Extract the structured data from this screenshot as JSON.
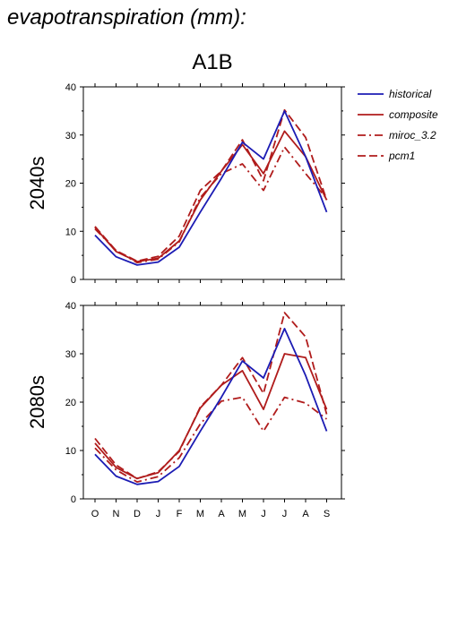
{
  "page_title": "evapotranspiration (mm):",
  "scenario": "A1B",
  "chart_data": {
    "type": "line",
    "categories": [
      "O",
      "N",
      "D",
      "J",
      "F",
      "M",
      "A",
      "M",
      "J",
      "J",
      "A",
      "S"
    ],
    "ylim": [
      0,
      40
    ],
    "yticks": [
      0,
      10,
      20,
      30,
      40
    ],
    "grid": false,
    "legend": "right",
    "legend_entries": [
      {
        "name": "historical",
        "color": "#1c1cb4",
        "style": "solid"
      },
      {
        "name": "composite",
        "color": "#b01c1c",
        "style": "solid"
      },
      {
        "name": "miroc_3.2",
        "color": "#b01c1c",
        "style": "dashdot"
      },
      {
        "name": "pcm1",
        "color": "#b01c1c",
        "style": "dashed"
      }
    ],
    "panels": [
      {
        "label": "2040s",
        "series": [
          {
            "name": "historical",
            "values": [
              9.2,
              4.7,
              3.0,
              3.6,
              6.7,
              14.0,
              21.0,
              28.5,
              25.0,
              35.0,
              25.5,
              14.0
            ]
          },
          {
            "name": "composite",
            "values": [
              10.8,
              5.8,
              3.7,
              4.4,
              8.0,
              16.5,
              22.5,
              28.0,
              22.0,
              30.8,
              25.5,
              16.5
            ]
          },
          {
            "name": "miroc_3.2",
            "values": [
              10.5,
              6.0,
              3.5,
              4.2,
              7.8,
              17.0,
              22.0,
              24.0,
              18.5,
              27.5,
              22.0,
              16.8
            ]
          },
          {
            "name": "pcm1",
            "values": [
              11.0,
              6.0,
              3.8,
              4.8,
              9.0,
              18.5,
              22.5,
              29.0,
              20.5,
              35.2,
              29.5,
              16.5
            ]
          }
        ]
      },
      {
        "label": "2080s",
        "series": [
          {
            "name": "historical",
            "values": [
              9.2,
              4.7,
              3.0,
              3.6,
              6.7,
              14.0,
              21.0,
              28.5,
              25.0,
              35.2,
              25.5,
              14.0
            ]
          },
          {
            "name": "composite",
            "values": [
              11.5,
              6.5,
              4.2,
              5.4,
              10.0,
              18.8,
              23.5,
              26.5,
              18.5,
              30.0,
              29.2,
              18.5
            ]
          },
          {
            "name": "miroc_3.2",
            "values": [
              10.5,
              6.0,
              3.5,
              4.6,
              8.5,
              15.5,
              20.2,
              21.0,
              14.0,
              21.0,
              19.8,
              16.5
            ]
          },
          {
            "name": "pcm1",
            "values": [
              12.5,
              7.0,
              4.2,
              5.6,
              9.8,
              19.0,
              23.5,
              29.2,
              21.8,
              38.5,
              33.5,
              17.5
            ]
          }
        ]
      }
    ]
  }
}
